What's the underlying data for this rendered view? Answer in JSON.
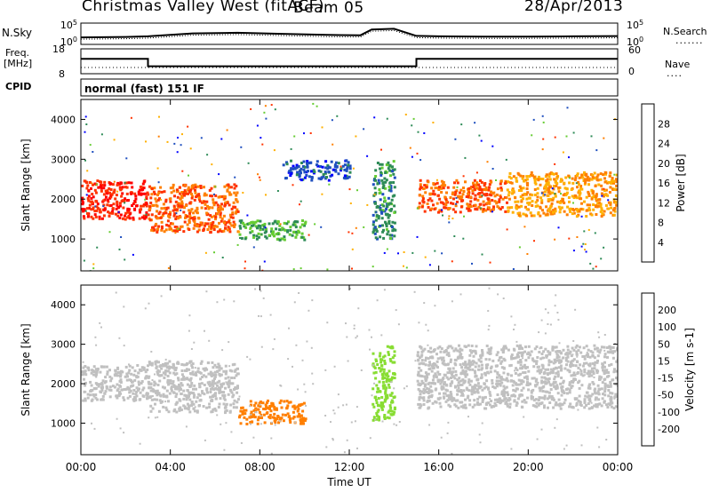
{
  "header": {
    "station": "Christmas Valley West (fitACF)",
    "beam": "Beam 05",
    "date": "28/Apr/2013"
  },
  "side_labels": {
    "nsky": "N.Sky",
    "nsearch": "N.Search",
    "freq": "Freq.",
    "freq_unit": "[MHz]",
    "nave": "Nave",
    "cpid": "CPID",
    "cpid_value": "normal (fast) 151 IF"
  },
  "chart_data": [
    {
      "type": "line",
      "panel": "noise",
      "left_axis": {
        "label": "N.Sky",
        "ticks": [
          "10^5",
          "10^0"
        ],
        "scale": "log"
      },
      "right_axis": {
        "label": "N.Search",
        "ticks": [
          "10^5",
          "10^0"
        ],
        "scale": "log"
      },
      "x": [
        0,
        2,
        3,
        5,
        7,
        9,
        11,
        12.5,
        13,
        14,
        15,
        16,
        18,
        20,
        22,
        24
      ],
      "series": [
        {
          "values": [
            30,
            40,
            60,
            400,
            600,
            300,
            150,
            120,
            5000,
            8000,
            80,
            60,
            50,
            50,
            60,
            70
          ]
        }
      ]
    },
    {
      "type": "line",
      "panel": "frequency",
      "left_axis": {
        "label": "Freq. [MHz]",
        "ticks": [
          18,
          8
        ],
        "ylim": [
          8,
          18
        ]
      },
      "right_axis": {
        "label": "Nave",
        "ticks": [
          60,
          0
        ],
        "ylim": [
          0,
          60
        ]
      },
      "x": [
        0,
        3,
        3,
        15,
        15,
        24
      ],
      "series": [
        {
          "values": [
            14,
            14,
            11,
            11,
            14,
            14
          ]
        },
        {
          "values": [
            10.5,
            10.5,
            10.5,
            10.5,
            10.5,
            10.5
          ]
        }
      ]
    },
    {
      "type": "heatmap",
      "panel": "power",
      "ylabel": "Slant Range [km]",
      "yticks": [
        1000,
        2000,
        3000,
        4000
      ],
      "ylim": [
        200,
        4500
      ],
      "xlim": [
        0,
        24
      ],
      "colorbar": {
        "label": "Power [dB]",
        "ticks": [
          4,
          8,
          12,
          16,
          20,
          24,
          28
        ]
      },
      "colors": [
        "#0000ff",
        "#1f4fbf",
        "#2e8b57",
        "#66cc33",
        "#ffb000",
        "#ff7f00",
        "#ff3300",
        "#ff0000"
      ],
      "features": [
        {
          "x": [
            0,
            3
          ],
          "y": [
            1500,
            2500
          ],
          "value": 28
        },
        {
          "x": [
            3,
            7
          ],
          "y": [
            1200,
            2400
          ],
          "value": 24
        },
        {
          "x": [
            7,
            10
          ],
          "y": [
            1000,
            1500
          ],
          "value": 12
        },
        {
          "x": [
            9,
            12
          ],
          "y": [
            2500,
            3000
          ],
          "value": 6
        },
        {
          "x": [
            13,
            14
          ],
          "y": [
            1000,
            3000
          ],
          "value": 10
        },
        {
          "x": [
            15,
            19
          ],
          "y": [
            1700,
            2500
          ],
          "value": 24
        },
        {
          "x": [
            19,
            24
          ],
          "y": [
            1600,
            2700
          ],
          "value": 20
        }
      ]
    },
    {
      "type": "heatmap",
      "panel": "velocity",
      "ylabel": "Slant Range [km]",
      "yticks": [
        1000,
        2000,
        3000,
        4000
      ],
      "ylim": [
        200,
        4500
      ],
      "xlim": [
        0,
        24
      ],
      "xticks": [
        "00:00",
        "04:00",
        "08:00",
        "12:00",
        "16:00",
        "20:00",
        "00:00"
      ],
      "xlabel": "Time UT",
      "colorbar": {
        "label": "Velocity [m s-1]",
        "ticks": [
          200,
          100,
          50,
          15,
          -15,
          -50,
          -100,
          -200
        ]
      },
      "colors": [
        "#1a33cc",
        "#1a66aa",
        "#33aa33",
        "#88dd33",
        "#c0c0c0",
        "#ffb000",
        "#ff7f00",
        "#ff3300",
        "#ee0000"
      ],
      "features": [
        {
          "x": [
            0,
            3
          ],
          "y": [
            1600,
            2500
          ],
          "value": 0
        },
        {
          "x": [
            3,
            7
          ],
          "y": [
            1300,
            2600
          ],
          "value": 0
        },
        {
          "x": [
            7,
            10
          ],
          "y": [
            1000,
            1600
          ],
          "value": -60
        },
        {
          "x": [
            13,
            14
          ],
          "y": [
            1100,
            3000
          ],
          "value": 40
        },
        {
          "x": [
            15,
            24
          ],
          "y": [
            1400,
            3000
          ],
          "value": 0
        }
      ]
    }
  ]
}
